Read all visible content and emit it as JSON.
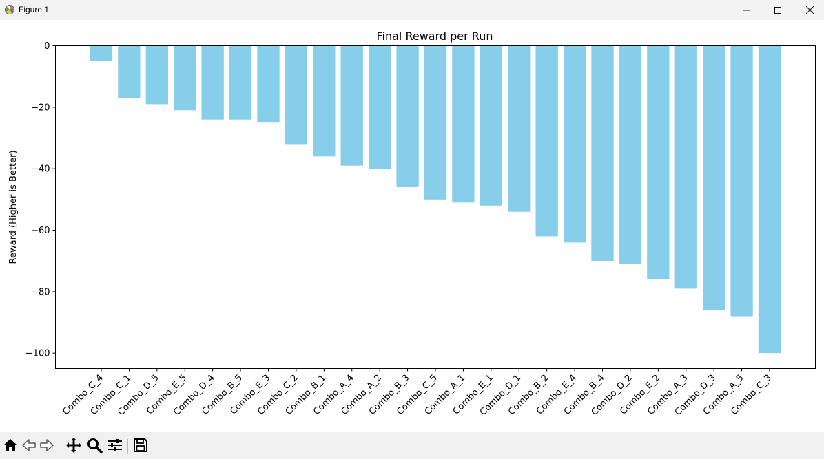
{
  "window": {
    "title": "Figure 1",
    "icon": "matplotlib-figure-icon",
    "controls": [
      "minimize-icon",
      "maximize-icon",
      "close-icon"
    ]
  },
  "toolbar": {
    "tools": [
      "home-icon",
      "back-arrow-icon",
      "forward-arrow-icon",
      "pan-move-icon",
      "zoom-magnifier-icon",
      "configure-subplots-icon",
      "save-floppy-icon"
    ]
  },
  "chart_data": {
    "type": "bar",
    "title": "Final Reward per Run",
    "xlabel": "",
    "ylabel": "Reward (Higher is Better)",
    "ylim": [
      -105,
      0
    ],
    "yticks": [
      0,
      -20,
      -40,
      -60,
      -80,
      -100
    ],
    "ytick_labels": [
      "0",
      "−20",
      "−40",
      "−60",
      "−80",
      "−100"
    ],
    "bar_color": "#87ceeb",
    "grid": false,
    "categories": [
      "Combo_C_4",
      "Combo_C_1",
      "Combo_D_5",
      "Combo_E_5",
      "Combo_D_4",
      "Combo_B_5",
      "Combo_E_3",
      "Combo_C_2",
      "Combo_B_1",
      "Combo_A_4",
      "Combo_A_2",
      "Combo_B_3",
      "Combo_C_5",
      "Combo_A_1",
      "Combo_E_1",
      "Combo_D_1",
      "Combo_B_2",
      "Combo_E_4",
      "Combo_B_4",
      "Combo_D_2",
      "Combo_E_2",
      "Combo_A_3",
      "Combo_D_3",
      "Combo_A_5",
      "Combo_C_3"
    ],
    "values": [
      -5,
      -17,
      -19,
      -21,
      -24,
      -24,
      -25,
      -32,
      -36,
      -39,
      -40,
      -46,
      -50,
      -51,
      -52,
      -54,
      -62,
      -64,
      -70,
      -71,
      -76,
      -79,
      -86,
      -88,
      -100
    ]
  }
}
